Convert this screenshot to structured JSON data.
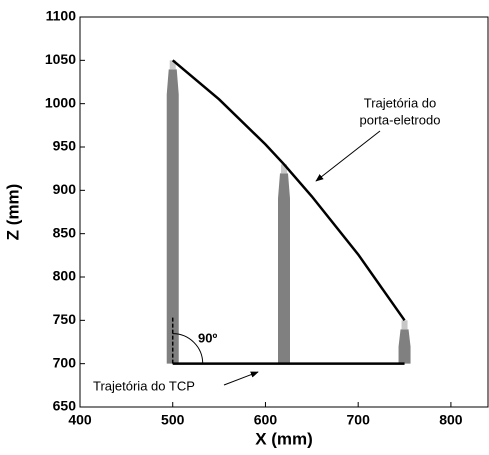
{
  "chart_data": {
    "type": "line",
    "xlabel": "X (mm)",
    "ylabel": "Z (mm)",
    "xlim": [
      400,
      840
    ],
    "ylim": [
      650,
      1100
    ],
    "xticks": [
      400,
      500,
      600,
      700,
      800
    ],
    "yticks": [
      650,
      700,
      750,
      800,
      850,
      900,
      950,
      1000,
      1050,
      1100
    ],
    "series": [
      {
        "color": "#000000",
        "x": [
          500,
          550,
          600,
          620,
          650,
          700,
          750
        ],
        "values": [
          1050,
          1005,
          953,
          930,
          893,
          826,
          750
        ]
      },
      {
        "color": "#000000",
        "x": [
          500,
          750
        ],
        "values": [
          700,
          700
        ]
      }
    ],
    "electrodes": {
      "color": "#808080",
      "tip_color": "#c8c8c8",
      "x": [
        500,
        620,
        750
      ],
      "values": [
        1050,
        930,
        750
      ]
    },
    "annotations": [
      "Trajetória do",
      "porta-eletrodo",
      "Trajetória do TCP",
      "90º"
    ]
  }
}
